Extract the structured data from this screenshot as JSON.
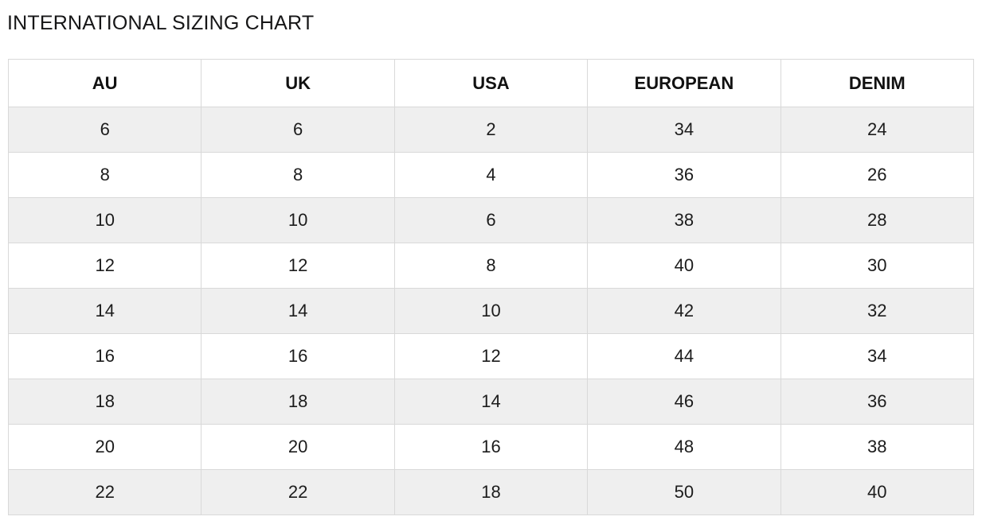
{
  "page": {
    "title": "INTERNATIONAL SIZING CHART"
  },
  "colors": {
    "background": "#ffffff",
    "row_stripe": "#efefef",
    "border": "#d9d9d9",
    "text": "#1c1c1c"
  },
  "chart_data": {
    "type": "table",
    "title": "INTERNATIONAL SIZING CHART",
    "columns": [
      "AU",
      "UK",
      "USA",
      "EUROPEAN",
      "DENIM"
    ],
    "rows": [
      [
        "6",
        "6",
        "2",
        "34",
        "24"
      ],
      [
        "8",
        "8",
        "4",
        "36",
        "26"
      ],
      [
        "10",
        "10",
        "6",
        "38",
        "28"
      ],
      [
        "12",
        "12",
        "8",
        "40",
        "30"
      ],
      [
        "14",
        "14",
        "10",
        "42",
        "32"
      ],
      [
        "16",
        "16",
        "12",
        "44",
        "34"
      ],
      [
        "18",
        "18",
        "14",
        "46",
        "36"
      ],
      [
        "20",
        "20",
        "16",
        "48",
        "38"
      ],
      [
        "22",
        "22",
        "18",
        "50",
        "40"
      ]
    ],
    "layout": {
      "striped": true,
      "stripe_starts_on_first_data_row": true,
      "header_bold": true,
      "grid": true
    }
  }
}
